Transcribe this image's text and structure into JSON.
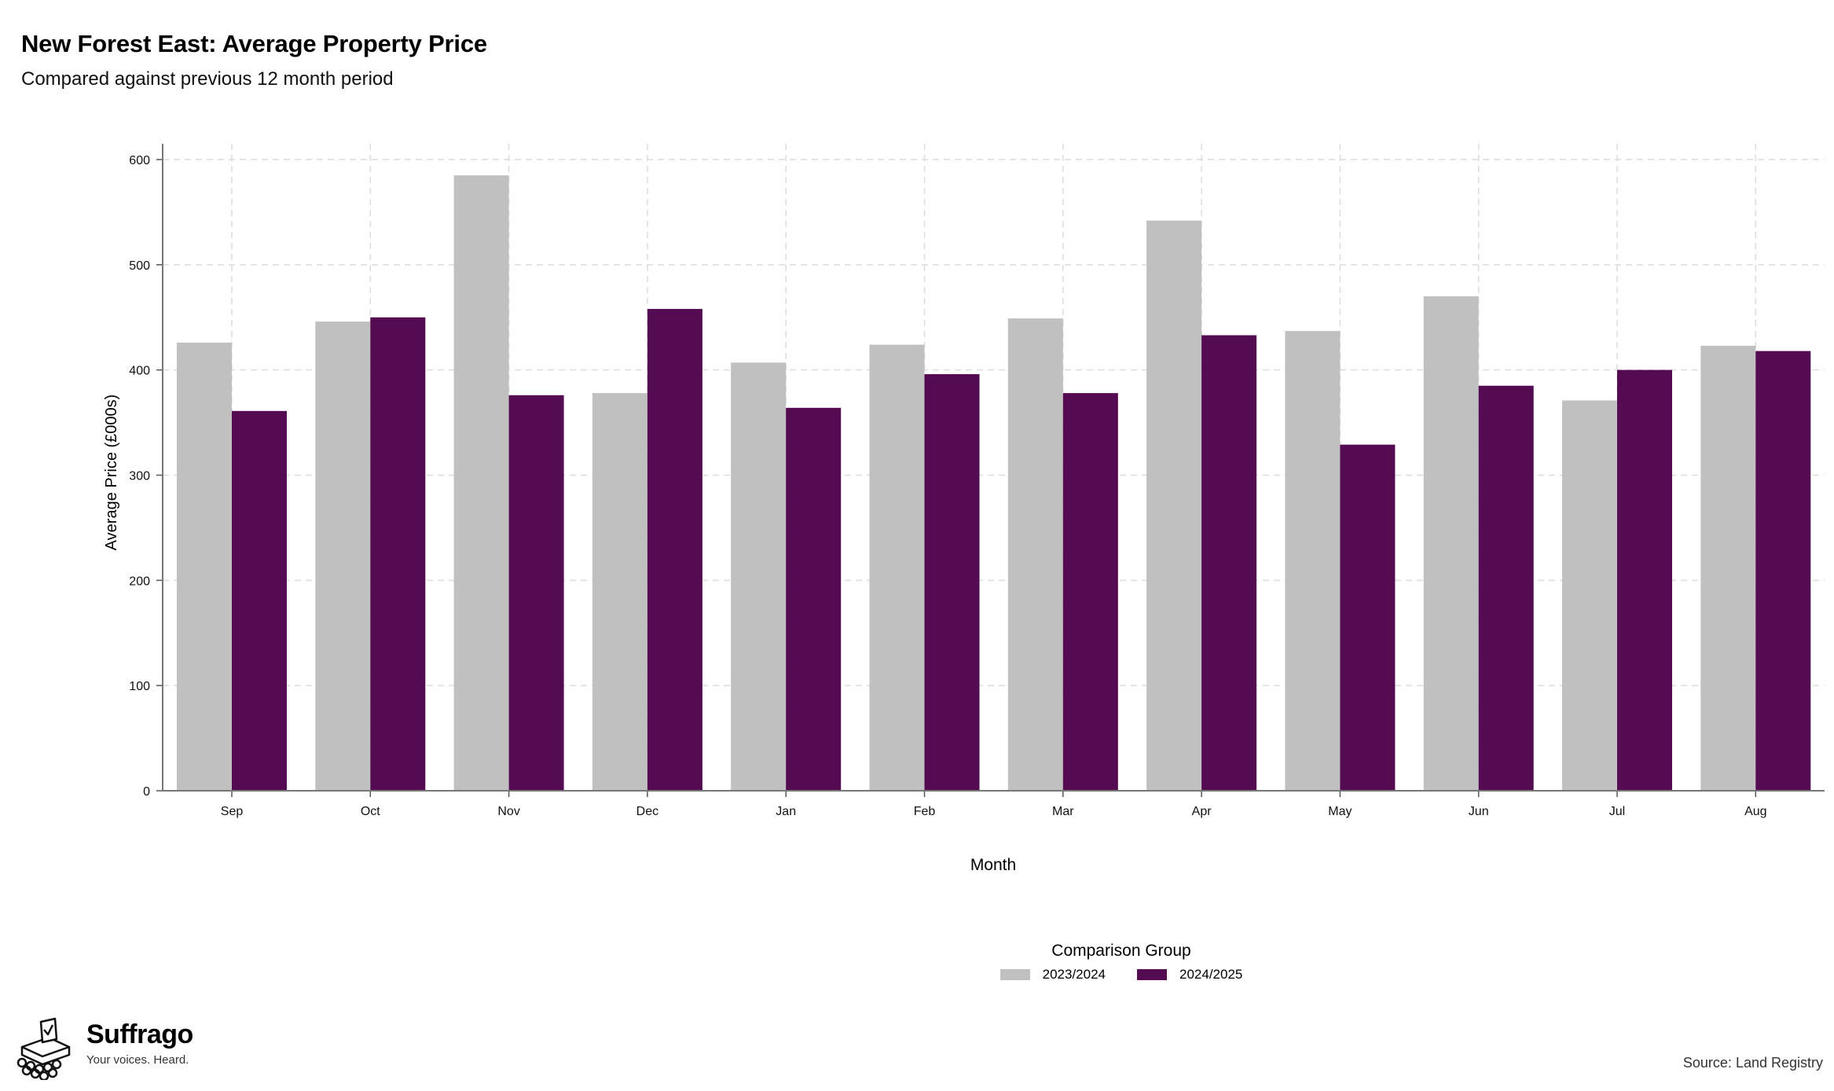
{
  "title": "New Forest East: Average Property Price",
  "subtitle": "Compared against previous 12 month period",
  "chart_data": {
    "type": "bar",
    "xlabel": "Month",
    "ylabel": "Average Price (£000s)",
    "categories": [
      "Sep",
      "Oct",
      "Nov",
      "Dec",
      "Jan",
      "Feb",
      "Mar",
      "Apr",
      "May",
      "Jun",
      "Jul",
      "Aug"
    ],
    "ylim": [
      0,
      600
    ],
    "yticks": [
      0,
      100,
      200,
      300,
      400,
      500,
      600
    ],
    "grid": true,
    "series": [
      {
        "name": "2023/2024",
        "color": "#c0c0c0",
        "values": [
          426,
          446,
          585,
          378,
          407,
          424,
          449,
          542,
          437,
          470,
          371,
          423
        ]
      },
      {
        "name": "2024/2025",
        "color": "#540b52",
        "values": [
          361,
          450,
          376,
          458,
          364,
          396,
          378,
          433,
          329,
          385,
          400,
          418
        ]
      }
    ],
    "legend_title": "Comparison Group",
    "legend_position": "bottom"
  },
  "logo": {
    "brand": "Suffrago",
    "tagline": "Your voices. Heard."
  },
  "source": "Source: Land Registry"
}
